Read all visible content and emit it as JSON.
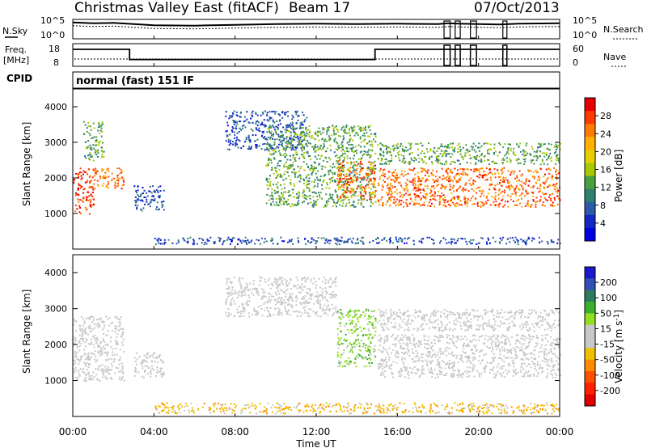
{
  "header": {
    "title": "Christmas Valley East (fitACF)",
    "beam": "Beam 17",
    "date": "07/Oct/2013"
  },
  "top_panels": {
    "nsky_label": "N.Sky",
    "nsearch_label": "N.Search",
    "nsky_ticks": [
      "10^5",
      "10^0"
    ],
    "nsearch_ticks": [
      "10^5",
      "10^0"
    ],
    "freq_label_line1": "Freq.",
    "freq_label_line2": "[MHz]",
    "freq_ticks": [
      "18",
      "8"
    ],
    "nave_label": "Nave",
    "nave_ticks": [
      "60",
      "0"
    ],
    "cpid_label": "CPID",
    "cpid_text": "normal (fast) 151 IF"
  },
  "colorbars": {
    "power": {
      "title": "Power [dB]",
      "labels": [
        "28",
        "24",
        "20",
        "16",
        "12",
        "8",
        "4"
      ],
      "colors": [
        "#e80000",
        "#ff3a00",
        "#ff7a00",
        "#ffb000",
        "#e8d000",
        "#a8c800",
        "#4aa040",
        "#2e8070",
        "#2a5aa8",
        "#1428c8",
        "#0000e0"
      ]
    },
    "velocity": {
      "title_main": "Velocity [m s",
      "title_sup": "-1",
      "title_end": "]",
      "labels": [
        "200",
        "100",
        "50",
        "15",
        "-15",
        "-50",
        "-100",
        "-200"
      ],
      "colors": [
        "#1a1acc",
        "#3050b8",
        "#2e7a60",
        "#3cb02c",
        "#8ee020",
        "#c8c8c8",
        "#c8c8c8",
        "#f0c000",
        "#ff8c00",
        "#ff5000",
        "#ff2000",
        "#e00000"
      ]
    }
  },
  "x_axis": {
    "label": "Time UT",
    "ticks": [
      "00:00",
      "04:00",
      "08:00",
      "12:00",
      "16:00",
      "20:00",
      "00:00"
    ]
  },
  "chart_data": [
    {
      "type": "line",
      "title": "N.Sky / N.Search",
      "x_unit": "hours UT",
      "xlim": [
        0,
        24
      ],
      "ylim_log10": [
        0,
        5
      ],
      "scale": "log",
      "series": [
        {
          "name": "N.Sky",
          "x": [
            0,
            1,
            2,
            3,
            4,
            6,
            8,
            10,
            12,
            14,
            16,
            18,
            18.5,
            19,
            20,
            21,
            22,
            24
          ],
          "log10_y": [
            4.2,
            4.0,
            4.1,
            3.8,
            3.5,
            3.4,
            3.6,
            3.8,
            3.9,
            3.8,
            3.9,
            3.8,
            4.0,
            3.9,
            3.8,
            3.7,
            3.9,
            4.0
          ]
        }
      ]
    },
    {
      "type": "line",
      "title": "Freq. / Nave",
      "x_unit": "hours UT",
      "xlim": [
        0,
        24
      ],
      "ylim": [
        8,
        18
      ],
      "series": [
        {
          "name": "Freq.",
          "x": [
            0,
            2.8,
            2.8,
            14.9,
            14.9,
            24
          ],
          "y": [
            15.5,
            15.5,
            11.0,
            11.0,
            15.5,
            15.5
          ]
        }
      ],
      "gaps_hours": [
        [
          18.3,
          18.6
        ],
        [
          18.85,
          19.1
        ],
        [
          19.6,
          19.9
        ],
        [
          21.2,
          21.4
        ]
      ]
    },
    {
      "type": "heatmap",
      "title": "Power [dB]",
      "xlabel": "Time UT",
      "ylabel": "Slant Range [km]",
      "xlim": [
        0,
        24
      ],
      "ylim": [
        0,
        4500
      ],
      "yticks": [
        1000,
        2000,
        3000,
        4000
      ],
      "clim": [
        0,
        30
      ],
      "regions": [
        {
          "t": [
            0,
            1.0
          ],
          "range": [
            1000,
            2300
          ],
          "value": 26
        },
        {
          "t": [
            1.0,
            2.5
          ],
          "range": [
            1700,
            2300
          ],
          "value": 24
        },
        {
          "t": [
            0.5,
            1.5
          ],
          "range": [
            2500,
            3600
          ],
          "value": 12
        },
        {
          "t": [
            3.0,
            4.5
          ],
          "range": [
            1100,
            1800
          ],
          "value": 6
        },
        {
          "t": [
            7.5,
            11.5
          ],
          "range": [
            2800,
            3900
          ],
          "value": 6
        },
        {
          "t": [
            9.5,
            14.9
          ],
          "range": [
            1200,
            3500
          ],
          "value": 12
        },
        {
          "t": [
            13.0,
            14.9
          ],
          "range": [
            1400,
            2500
          ],
          "value": 24
        },
        {
          "t": [
            15.0,
            24
          ],
          "range": [
            1200,
            2300
          ],
          "value": 24
        },
        {
          "t": [
            15.0,
            24
          ],
          "range": [
            2400,
            3000
          ],
          "value": 12
        },
        {
          "t": [
            4.0,
            24
          ],
          "range": [
            150,
            350
          ],
          "value": 6
        }
      ]
    },
    {
      "type": "heatmap",
      "title": "Velocity [m s-1]",
      "xlabel": "Time UT",
      "ylabel": "Slant Range [km]",
      "xlim": [
        0,
        24
      ],
      "ylim": [
        0,
        4500
      ],
      "yticks": [
        1000,
        2000,
        3000,
        4000
      ],
      "clim": [
        -200,
        200
      ],
      "regions": [
        {
          "t": [
            0,
            2.5
          ],
          "range": [
            1000,
            2800
          ],
          "value": 0
        },
        {
          "t": [
            3.0,
            4.5
          ],
          "range": [
            1100,
            1800
          ],
          "value": 0
        },
        {
          "t": [
            7.5,
            13.0
          ],
          "range": [
            2800,
            3900
          ],
          "value": 0
        },
        {
          "t": [
            13.0,
            14.9
          ],
          "range": [
            1400,
            3000
          ],
          "value": 50
        },
        {
          "t": [
            15.0,
            24
          ],
          "range": [
            1100,
            2300
          ],
          "value": 0
        },
        {
          "t": [
            15.0,
            24
          ],
          "range": [
            2400,
            3000
          ],
          "value": 0
        },
        {
          "t": [
            4.0,
            24
          ],
          "range": [
            100,
            400
          ],
          "value": -50
        }
      ]
    }
  ]
}
